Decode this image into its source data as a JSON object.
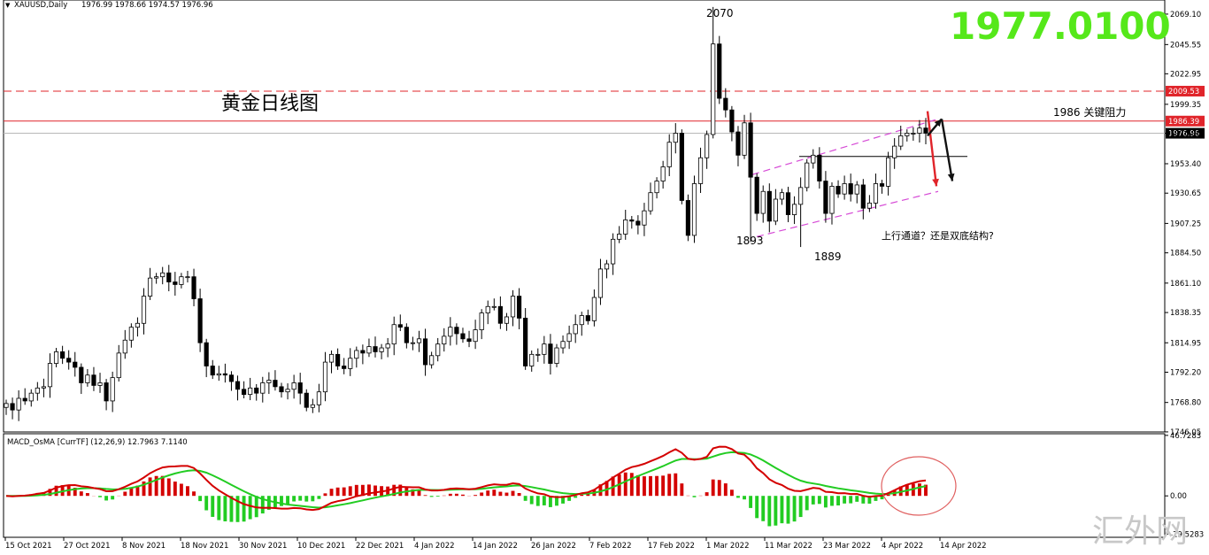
{
  "chart_data": [
    {
      "type": "candlestick",
      "symbol_header": "XAUUSD,Daily",
      "ohlc_header": "1976.99 1978.66 1974.57 1976.96",
      "title": "黄金日线图",
      "big_price": "1977.0100",
      "ylim": [
        1746.0,
        2080.0
      ],
      "y_ticks": [
        "2069.10",
        "2045.55",
        "2022.95",
        "1999.35",
        "1976.96",
        "1953.40",
        "1930.65",
        "1907.25",
        "1884.50",
        "1861.10",
        "1838.35",
        "1814.95",
        "1792.20",
        "1768.80",
        "1746.05"
      ],
      "x_ticks": [
        "15 Oct 2021",
        "27 Oct 2021",
        "8 Nov 2021",
        "18 Nov 2021",
        "30 Nov 2021",
        "10 Dec 2021",
        "22 Dec 2021",
        "4 Jan 2022",
        "14 Jan 2022",
        "26 Jan 2022",
        "7 Feb 2022",
        "17 Feb 2022",
        "1 Mar 2022",
        "11 Mar 2022",
        "23 Mar 2022",
        "4 Apr 2022",
        "14 Apr 2022"
      ],
      "levels": [
        {
          "label": "2009.53",
          "value": 2009.53,
          "style": "dashed",
          "color": "#e0242a"
        },
        {
          "label": "1986.39",
          "value": 1986.39,
          "style": "solid",
          "color": "#e0242a"
        },
        {
          "label": "1976.96",
          "value": 1976.96,
          "style": "solid",
          "color": "#b8b8b8",
          "current": true
        }
      ],
      "annotations": {
        "high": "2070",
        "low_a": "1893",
        "low_b": "1889",
        "resistance": "1986 关键阻力",
        "question": "上行通道？还是双底结构?"
      },
      "closes": [
        1768,
        1763,
        1772,
        1770,
        1776,
        1780,
        1781,
        1799,
        1808,
        1803,
        1800,
        1796,
        1784,
        1790,
        1782,
        1784,
        1770,
        1788,
        1807,
        1817,
        1827,
        1830,
        1851,
        1865,
        1866,
        1869,
        1862,
        1860,
        1866,
        1866,
        1849,
        1815,
        1797,
        1790,
        1791,
        1790,
        1785,
        1779,
        1775,
        1780,
        1776,
        1784,
        1786,
        1781,
        1777,
        1779,
        1784,
        1776,
        1765,
        1767,
        1777,
        1800,
        1806,
        1797,
        1795,
        1803,
        1809,
        1807,
        1812,
        1808,
        1811,
        1814,
        1829,
        1827,
        1815,
        1815,
        1818,
        1798,
        1805,
        1814,
        1820,
        1827,
        1822,
        1818,
        1816,
        1825,
        1838,
        1843,
        1843,
        1830,
        1835,
        1851,
        1834,
        1797,
        1806,
        1806,
        1814,
        1799,
        1811,
        1816,
        1822,
        1829,
        1836,
        1832,
        1850,
        1872,
        1876,
        1895,
        1899,
        1910,
        1909,
        1906,
        1917,
        1931,
        1940,
        1951,
        1970,
        1977,
        1925,
        1898,
        1938,
        1958,
        1976,
        2046,
        2004,
        1995,
        1978,
        1960,
        1985,
        1943,
        1915,
        1932,
        1909,
        1926,
        1931,
        1914,
        1922,
        1935,
        1954,
        1960,
        1940,
        1915,
        1936,
        1930,
        1938,
        1930,
        1937,
        1919,
        1923,
        1938,
        1936,
        1958,
        1967,
        1975,
        1977,
        1977,
        1981,
        1977
      ],
      "channel": {
        "upper": [
          1945,
          1988
        ],
        "lower": [
          1897,
          1932
        ]
      },
      "arrows": [
        {
          "color": "#e0242a",
          "from": 1994,
          "to": 1936
        },
        {
          "color": "#111111",
          "from": 1975,
          "to": 1988
        },
        {
          "color": "#111111",
          "from": 1988,
          "to": 1940
        }
      ]
    },
    {
      "type": "macd",
      "label": "MACD_OsMA [CurrTF] (12,26,9) 12.7963 7.1140",
      "ylim": [
        -32.0,
        48.0
      ],
      "y_ticks": [
        "46.7283",
        "0.00",
        "-29.5283"
      ],
      "macd_color": "#d40000",
      "signal_color": "#22cc22",
      "hist_pos_color": "#d40000",
      "hist_neg_color": "#22cc22",
      "circle_color": "#e06060"
    }
  ],
  "watermark": "汇外网",
  "colors": {
    "bull": "#ffffff",
    "bear": "#000000",
    "wick": "#000000",
    "grid": "#000000",
    "big_price": "#55e81a",
    "channel": "#d64ad6"
  }
}
